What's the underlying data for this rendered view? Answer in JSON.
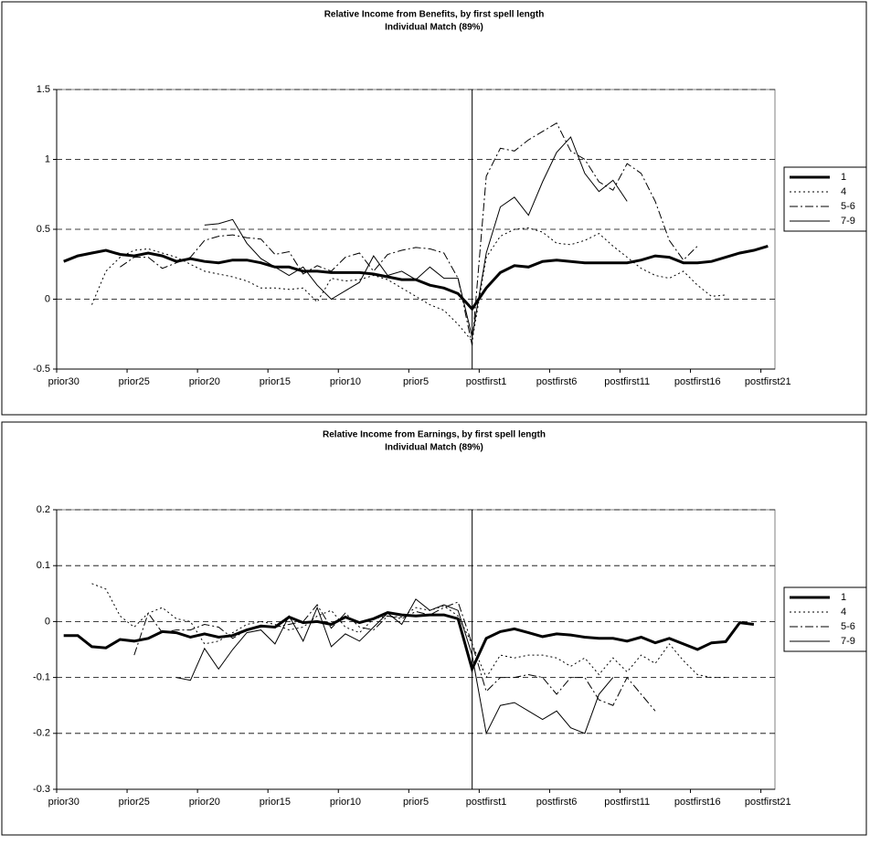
{
  "chart_data": [
    {
      "type": "line",
      "title": "Relative Income from Benefits, by first spell length",
      "subtitle": "Individual Match (89%)",
      "categories": [
        "prior30",
        null,
        null,
        null,
        null,
        "prior25",
        null,
        null,
        null,
        null,
        "prior20",
        null,
        null,
        null,
        null,
        "prior15",
        null,
        null,
        null,
        null,
        "prior10",
        null,
        null,
        null,
        null,
        "prior5",
        null,
        null,
        null,
        null,
        "postfirst1",
        null,
        null,
        null,
        null,
        "postfirst6",
        null,
        null,
        null,
        null,
        "postfirst11",
        null,
        null,
        null,
        null,
        "postfirst16",
        null,
        null,
        null,
        null,
        "postfirst21"
      ],
      "ylim": [
        -0.5,
        1.5
      ],
      "yticks": [
        -0.5,
        0,
        0.5,
        1,
        1.5
      ],
      "grid": true,
      "legend": "right",
      "series": [
        {
          "name": "1",
          "color": "#000000",
          "line_width": 3,
          "line_style": "solid",
          "values": [
            0.27,
            0.31,
            0.33,
            0.35,
            0.32,
            0.31,
            0.33,
            0.31,
            0.27,
            0.29,
            0.27,
            0.26,
            0.28,
            0.28,
            0.26,
            0.23,
            0.23,
            0.2,
            0.2,
            0.19,
            0.19,
            0.19,
            0.18,
            0.16,
            0.14,
            0.14,
            0.1,
            0.08,
            0.04,
            -0.07,
            0.08,
            0.19,
            0.24,
            0.23,
            0.27,
            0.28,
            0.27,
            0.26,
            0.26,
            0.26,
            0.26,
            0.28,
            0.31,
            0.3,
            0.26,
            0.26,
            0.27,
            0.3,
            0.33,
            0.35,
            0.38
          ]
        },
        {
          "name": "4",
          "color": "#000000",
          "line_width": 1,
          "line_style": "dot",
          "values": [
            null,
            null,
            -0.04,
            0.2,
            0.3,
            0.35,
            0.36,
            0.33,
            0.3,
            0.25,
            0.2,
            0.18,
            0.16,
            0.13,
            0.08,
            0.08,
            0.07,
            0.08,
            -0.02,
            0.15,
            0.13,
            0.14,
            0.17,
            0.14,
            0.08,
            0.02,
            -0.04,
            -0.08,
            -0.18,
            -0.3,
            0.3,
            0.45,
            0.5,
            0.51,
            0.48,
            0.4,
            0.39,
            0.42,
            0.47,
            0.38,
            0.3,
            0.22,
            0.17,
            0.15,
            0.2,
            0.1,
            0.02,
            0.03,
            null,
            null,
            null
          ]
        },
        {
          "name": "5-6",
          "color": "#000000",
          "line_width": 1,
          "line_style": "dashdot",
          "values": [
            null,
            null,
            null,
            null,
            0.23,
            0.3,
            0.3,
            0.22,
            0.26,
            0.3,
            0.42,
            0.45,
            0.46,
            0.44,
            0.43,
            0.32,
            0.34,
            0.18,
            0.24,
            0.2,
            0.3,
            0.33,
            0.2,
            0.32,
            0.35,
            0.37,
            0.36,
            0.33,
            0.15,
            -0.33,
            0.88,
            1.08,
            1.06,
            1.14,
            1.2,
            1.26,
            1.06,
            1,
            0.84,
            0.78,
            0.97,
            0.9,
            0.7,
            0.42,
            0.28,
            0.38,
            null,
            null,
            null,
            null,
            null
          ]
        },
        {
          "name": "7-9",
          "color": "#000000",
          "line_width": 1,
          "line_style": "solid",
          "values": [
            null,
            null,
            null,
            null,
            null,
            null,
            null,
            null,
            null,
            null,
            0.53,
            0.54,
            0.57,
            0.4,
            0.29,
            0.23,
            0.17,
            0.23,
            0.1,
            0,
            0.06,
            0.12,
            0.31,
            0.17,
            0.2,
            0.14,
            0.23,
            0.15,
            0.15,
            -0.27,
            0.33,
            0.66,
            0.73,
            0.6,
            0.84,
            1.05,
            1.16,
            0.9,
            0.77,
            0.85,
            0.7,
            null,
            null,
            null,
            null,
            null,
            null,
            null,
            null,
            null,
            null
          ]
        }
      ]
    },
    {
      "type": "line",
      "title": "Relative Income from Earnings, by first spell length",
      "subtitle": "Individual Match (89%)",
      "categories": [
        "prior30",
        null,
        null,
        null,
        null,
        "prior25",
        null,
        null,
        null,
        null,
        "prior20",
        null,
        null,
        null,
        null,
        "prior15",
        null,
        null,
        null,
        null,
        "prior10",
        null,
        null,
        null,
        null,
        "prior5",
        null,
        null,
        null,
        null,
        "postfirst1",
        null,
        null,
        null,
        null,
        "postfirst6",
        null,
        null,
        null,
        null,
        "postfirst11",
        null,
        null,
        null,
        null,
        "postfirst16",
        null,
        null,
        null,
        null,
        "postfirst21"
      ],
      "ylim": [
        -0.3,
        0.2
      ],
      "yticks": [
        -0.3,
        -0.2,
        -0.1,
        0,
        0.1,
        0.2
      ],
      "grid": true,
      "legend": "right",
      "series": [
        {
          "name": "1",
          "color": "#000000",
          "line_width": 3,
          "line_style": "solid",
          "values": [
            -0.025,
            -0.025,
            -0.045,
            -0.047,
            -0.032,
            -0.035,
            -0.03,
            -0.018,
            -0.02,
            -0.028,
            -0.022,
            -0.028,
            -0.025,
            -0.015,
            -0.008,
            -0.01,
            0.008,
            -0.002,
            0,
            -0.005,
            0.008,
            -0.002,
            0.005,
            0.016,
            0.012,
            0.01,
            0.012,
            0.012,
            0.005,
            -0.085,
            -0.03,
            -0.018,
            -0.013,
            -0.02,
            -0.027,
            -0.022,
            -0.024,
            -0.028,
            -0.03,
            -0.03,
            -0.035,
            -0.028,
            -0.038,
            -0.03,
            -0.04,
            -0.05,
            -0.038,
            -0.036,
            -0.002,
            -0.005,
            null
          ]
        },
        {
          "name": "4",
          "color": "#000000",
          "line_width": 1,
          "line_style": "dot",
          "values": [
            null,
            null,
            0.068,
            0.058,
            0.01,
            -0.01,
            0.015,
            0.025,
            0.005,
            0,
            -0.04,
            -0.035,
            -0.02,
            -0.005,
            0,
            -0.005,
            -0.015,
            -0.01,
            0.01,
            0.02,
            -0.01,
            -0.02,
            0.005,
            0.01,
            0.008,
            0.025,
            0.02,
            0.028,
            0.01,
            -0.04,
            -0.1,
            -0.06,
            -0.065,
            -0.06,
            -0.06,
            -0.065,
            -0.08,
            -0.065,
            -0.095,
            -0.065,
            -0.09,
            -0.06,
            -0.075,
            -0.04,
            -0.07,
            -0.095,
            -0.1,
            -0.1,
            null,
            null,
            null
          ]
        },
        {
          "name": "5-6",
          "color": "#000000",
          "line_width": 1,
          "line_style": "dashdot",
          "values": [
            null,
            null,
            null,
            null,
            null,
            -0.06,
            0.015,
            -0.02,
            -0.015,
            -0.015,
            -0.005,
            -0.01,
            -0.03,
            -0.015,
            -0.01,
            -0.01,
            -0.005,
            0,
            0.03,
            -0.012,
            0.015,
            -0.01,
            -0.015,
            0.01,
            0.005,
            0.018,
            0.012,
            0.025,
            0.035,
            -0.04,
            -0.125,
            -0.1,
            -0.1,
            -0.095,
            -0.1,
            -0.13,
            -0.1,
            -0.1,
            -0.14,
            -0.15,
            -0.1,
            -0.13,
            -0.16,
            null,
            null,
            null,
            null,
            null,
            null,
            null,
            null
          ]
        },
        {
          "name": "7-9",
          "color": "#000000",
          "line_width": 1,
          "line_style": "solid",
          "values": [
            null,
            null,
            null,
            null,
            null,
            null,
            null,
            null,
            -0.1,
            -0.105,
            -0.048,
            -0.085,
            -0.05,
            -0.02,
            -0.015,
            -0.04,
            0.01,
            -0.035,
            0.025,
            -0.045,
            -0.022,
            -0.035,
            -0.01,
            0.015,
            -0.005,
            0.04,
            0.02,
            0.03,
            0.02,
            -0.06,
            -0.2,
            -0.15,
            -0.145,
            -0.16,
            -0.175,
            -0.16,
            -0.19,
            -0.2,
            -0.13,
            -0.1,
            null,
            null,
            null,
            null,
            null,
            null,
            null,
            null,
            null,
            null,
            null
          ]
        }
      ]
    }
  ]
}
